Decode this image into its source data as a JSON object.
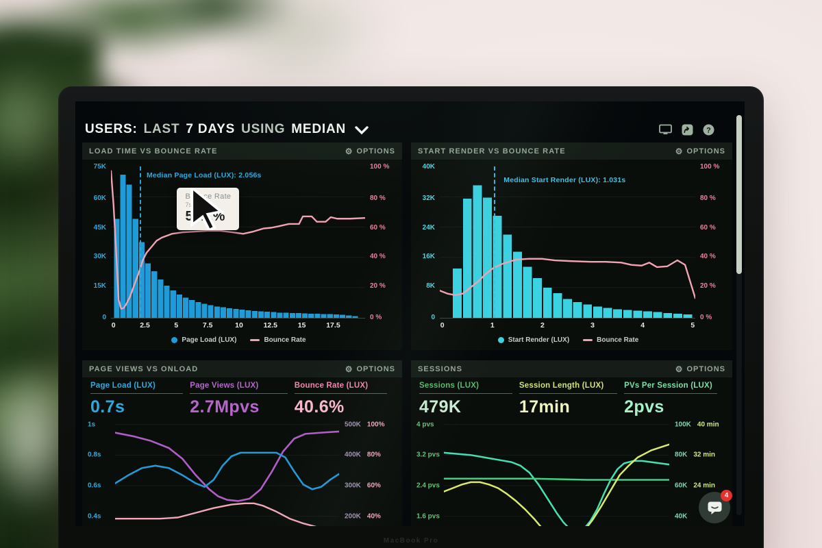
{
  "photo": {
    "bezel_label": "MacBook Pro"
  },
  "header": {
    "users": "USERS:",
    "last": "LAST",
    "days": "7 DAYS",
    "using": "USING",
    "median": "MEDIAN"
  },
  "chat": {
    "badge": "4"
  },
  "panels": {
    "load_time": {
      "title": "LOAD TIME VS BOUNCE RATE",
      "options": "OPTIONS",
      "median_annotation": "Median Page Load (LUX): 2.056s",
      "tooltip": {
        "title": "Bounce Rate",
        "subtitle": "7s",
        "value": "57.1%"
      },
      "y_left": [
        "75K",
        "60K",
        "45K",
        "30K",
        "15K",
        "0"
      ],
      "y_right": [
        "100 %",
        "80 %",
        "60 %",
        "40 %",
        "20 %",
        "0 %"
      ],
      "x_ticks": [
        {
          "label": "0",
          "pos": 1
        },
        {
          "label": "2.5",
          "pos": 13.35
        },
        {
          "label": "5",
          "pos": 25.7
        },
        {
          "label": "7.5",
          "pos": 38.05
        },
        {
          "label": "10",
          "pos": 50.4
        },
        {
          "label": "12.5",
          "pos": 62.75
        },
        {
          "label": "15",
          "pos": 75.1
        },
        {
          "label": "17.5",
          "pos": 87.45
        }
      ],
      "legend": [
        {
          "label": "Page Load (LUX)"
        },
        {
          "label": "Bounce Rate"
        }
      ],
      "chart": {
        "type": "histogram+line",
        "bar_color": "#1f9bd7",
        "bar_max_k": 75,
        "bar_start_pct": 1,
        "bar_span_pct": 96.3,
        "bars_k": [
          49,
          71,
          66,
          49,
          37.5,
          27,
          23,
          19,
          16,
          13.5,
          11.5,
          10,
          8.8,
          7.8,
          7,
          6.2,
          5.6,
          5.2,
          4.8,
          4.4,
          4,
          3.7,
          3.4,
          3.2,
          3,
          2.8,
          2.6,
          2.5,
          2.4,
          2.3,
          2.2,
          2.1,
          2,
          1.9,
          1.8,
          1.7,
          1.5,
          1.2,
          0.9
        ],
        "grid_lines": [
          20,
          40,
          60,
          80
        ],
        "median_pos": 11.2,
        "lines": [
          {
            "name": "Bounce Rate",
            "color": "#f0a3b2",
            "width": 2.4,
            "pts": [
              [
                0,
                3
              ],
              [
                1,
                25
              ],
              [
                2,
                55
              ],
              [
                3,
                88
              ],
              [
                4,
                94
              ],
              [
                5,
                93.5
              ],
              [
                6,
                91
              ],
              [
                7.5,
                86
              ],
              [
                9,
                79
              ],
              [
                11,
                70
              ],
              [
                12.5,
                62
              ],
              [
                14,
                57
              ],
              [
                16,
                53
              ],
              [
                18,
                49
              ],
              [
                20,
                47
              ],
              [
                24,
                44.5
              ],
              [
                28,
                43.5
              ],
              [
                33,
                43
              ],
              [
                38,
                42.5
              ],
              [
                43,
                42.5
              ],
              [
                48,
                43.5
              ],
              [
                52,
                44.5
              ],
              [
                56,
                43
              ],
              [
                60,
                41
              ],
              [
                63,
                40.5
              ],
              [
                66,
                39.5
              ],
              [
                70,
                38
              ],
              [
                74,
                38
              ],
              [
                75.5,
                33
              ],
              [
                79,
                33
              ],
              [
                81,
                36.5
              ],
              [
                84.5,
                36.5
              ],
              [
                86.5,
                33.5
              ],
              [
                89,
                34.5
              ],
              [
                94,
                34.5
              ],
              [
                100,
                34
              ]
            ]
          }
        ]
      }
    },
    "start_render": {
      "title": "START RENDER VS BOUNCE RATE",
      "options": "OPTIONS",
      "median_annotation": "Median Start Render (LUX): 1.031s",
      "y_left": [
        "40K",
        "32K",
        "24K",
        "16K",
        "8K",
        "0"
      ],
      "y_right": [
        "100 %",
        "80 %",
        "60 %",
        "40 %",
        "20 %",
        "0 %"
      ],
      "x_ticks": [
        {
          "label": "0",
          "pos": 1
        },
        {
          "label": "1",
          "pos": 20.6
        },
        {
          "label": "2",
          "pos": 40.2
        },
        {
          "label": "3",
          "pos": 59.8
        },
        {
          "label": "4",
          "pos": 79.4
        },
        {
          "label": "5",
          "pos": 99
        }
      ],
      "legend": [
        {
          "label": "Start Render (LUX)"
        },
        {
          "label": "Bounce Rate"
        }
      ],
      "chart": {
        "type": "histogram+line",
        "bar_color": "#3bd2e2",
        "bar_max_k": 40,
        "bar_start_pct": 4.9,
        "bar_span_pct": 94.1,
        "bars_k": [
          13,
          31.5,
          35,
          31.8,
          27,
          22,
          17.5,
          13.5,
          10.5,
          8,
          6.5,
          5,
          4.2,
          3.5,
          3,
          2.6,
          2.3,
          2.1,
          1.9,
          1.7,
          1.5,
          1.3,
          1.1,
          0.9
        ],
        "grid_lines": [
          20,
          40,
          60,
          80
        ],
        "median_pos": 21.2,
        "lines": [
          {
            "name": "Bounce Rate",
            "color": "#f0a3b2",
            "width": 2.4,
            "pts": [
              [
                0,
                82
              ],
              [
                3,
                84
              ],
              [
                6,
                85
              ],
              [
                9,
                84
              ],
              [
                12,
                80
              ],
              [
                15,
                76
              ],
              [
                18,
                71
              ],
              [
                21,
                67
              ],
              [
                25,
                64
              ],
              [
                30,
                61.5
              ],
              [
                35,
                61
              ],
              [
                40,
                61
              ],
              [
                45,
                62
              ],
              [
                51,
                62.5
              ],
              [
                59,
                63
              ],
              [
                65,
                63
              ],
              [
                71,
                63.5
              ],
              [
                75,
                65
              ],
              [
                79,
                65.5
              ],
              [
                82,
                63.5
              ],
              [
                85,
                66.5
              ],
              [
                89,
                66
              ],
              [
                93,
                62
              ],
              [
                96,
                65
              ],
              [
                100,
                87
              ]
            ]
          }
        ]
      }
    },
    "page_views": {
      "title": "PAGE VIEWS VS ONLOAD",
      "options": "OPTIONS",
      "metrics": [
        {
          "label": "Page Load (LUX)",
          "value": "0.7s",
          "label_color": "#2fa9dd",
          "value_color": "#2fa9dd"
        },
        {
          "label": "Page Views (LUX)",
          "value": "2.7Mpvs",
          "label_color": "#b765cb",
          "value_color": "#b765cb"
        },
        {
          "label": "Bounce Rate (LUX)",
          "value": "40.6%",
          "label_color": "#f286ad",
          "value_color": "#f9b7cd"
        }
      ],
      "y_left": [
        "1s",
        "0.8s",
        "0.6s",
        "0.4s"
      ],
      "y_right": [
        {
          "k": "500K",
          "pct": "100%"
        },
        {
          "k": "400K",
          "pct": "80%"
        },
        {
          "k": "300K",
          "pct": "60%"
        },
        {
          "k": "200K",
          "pct": "40%"
        }
      ],
      "chart": {
        "type": "line",
        "grid_lines": [
          5,
          31,
          57,
          83
        ],
        "lines": [
          {
            "name": "Page Views",
            "color": "#b05ec6",
            "width": 2.6,
            "pts": [
              [
                0,
                12
              ],
              [
                8,
                15
              ],
              [
                16,
                19
              ],
              [
                24,
                25
              ],
              [
                30,
                34
              ],
              [
                36,
                48
              ],
              [
                42,
                60
              ],
              [
                46,
                66
              ],
              [
                50,
                69
              ],
              [
                55,
                70
              ],
              [
                60,
                68
              ],
              [
                65,
                60
              ],
              [
                70,
                45
              ],
              [
                75,
                28
              ],
              [
                80,
                17
              ],
              [
                85,
                13
              ],
              [
                92,
                12
              ],
              [
                100,
                11
              ]
            ]
          },
          {
            "name": "Page Load",
            "color": "#2499d6",
            "width": 2.6,
            "pts": [
              [
                0,
                55
              ],
              [
                6,
                48
              ],
              [
                12,
                42
              ],
              [
                18,
                40
              ],
              [
                24,
                42
              ],
              [
                30,
                48
              ],
              [
                36,
                55
              ],
              [
                40,
                58
              ],
              [
                44,
                52
              ],
              [
                48,
                40
              ],
              [
                52,
                32
              ],
              [
                56,
                29
              ],
              [
                64,
                29
              ],
              [
                72,
                29
              ],
              [
                76,
                33
              ],
              [
                80,
                45
              ],
              [
                84,
                56
              ],
              [
                88,
                60
              ],
              [
                92,
                58
              ],
              [
                96,
                52
              ],
              [
                100,
                47
              ]
            ]
          },
          {
            "name": "Bounce Rate",
            "color": "#f2a8b8",
            "width": 2.4,
            "pts": [
              [
                0,
                85
              ],
              [
                10,
                85
              ],
              [
                20,
                85
              ],
              [
                28,
                84
              ],
              [
                36,
                80
              ],
              [
                44,
                76
              ],
              [
                52,
                73
              ],
              [
                58,
                72
              ],
              [
                62,
                72
              ],
              [
                66,
                74
              ],
              [
                72,
                79
              ],
              [
                78,
                85
              ],
              [
                84,
                89
              ],
              [
                92,
                93
              ],
              [
                100,
                95
              ]
            ]
          }
        ]
      }
    },
    "sessions": {
      "title": "SESSIONS",
      "options": "OPTIONS",
      "metrics": [
        {
          "label": "Sessions (LUX)",
          "value": "479K",
          "label_color": "#58bb6a",
          "value_color": "#c9ecd3"
        },
        {
          "label": "Session Length (LUX)",
          "value": "17min",
          "label_color": "#cfe477",
          "value_color": "#eff4c3"
        },
        {
          "label": "PVs Per Session (LUX)",
          "value": "2pvs",
          "label_color": "#79dfa9",
          "value_color": "#a5f2c9"
        }
      ],
      "y_left": [
        "4 pvs",
        "3.2 pvs",
        "2.4 pvs",
        "1.6 pvs"
      ],
      "y_right": [
        {
          "k": "100K",
          "min": "40 min"
        },
        {
          "k": "80K",
          "min": "32 min"
        },
        {
          "k": "60K",
          "min": "24 min"
        },
        {
          "k": "40K",
          "min": ""
        }
      ],
      "chart": {
        "type": "line",
        "grid_lines": [
          5,
          31,
          57,
          83
        ],
        "lines": [
          {
            "name": "Sessions",
            "color": "#45e0b2",
            "width": 2.5,
            "pts": [
              [
                0,
                29
              ],
              [
                6,
                30
              ],
              [
                12,
                31
              ],
              [
                18,
                33
              ],
              [
                24,
                35
              ],
              [
                30,
                37
              ],
              [
                34,
                40
              ],
              [
                38,
                46
              ],
              [
                42,
                56
              ],
              [
                46,
                68
              ],
              [
                50,
                80
              ],
              [
                53,
                88
              ],
              [
                56,
                94
              ],
              [
                59,
                96
              ],
              [
                62,
                94
              ],
              [
                65,
                87
              ],
              [
                68,
                77
              ],
              [
                71,
                64
              ],
              [
                74,
                52
              ],
              [
                77,
                43
              ],
              [
                80,
                38
              ],
              [
                84,
                36
              ],
              [
                88,
                36
              ],
              [
                92,
                37
              ],
              [
                96,
                38
              ],
              [
                100,
                39
              ]
            ]
          },
          {
            "name": "PVs Per Session",
            "color": "#3bd483",
            "width": 2.5,
            "pts": [
              [
                0,
                51
              ],
              [
                20,
                51
              ],
              [
                40,
                51
              ],
              [
                52,
                51.5
              ],
              [
                64,
                52
              ],
              [
                80,
                52
              ],
              [
                100,
                52
              ]
            ]
          },
          {
            "name": "Session Length",
            "color": "#d9e96b",
            "width": 2.5,
            "pts": [
              [
                0,
                62
              ],
              [
                4,
                59
              ],
              [
                8,
                56
              ],
              [
                12,
                54
              ],
              [
                16,
                54
              ],
              [
                20,
                56
              ],
              [
                24,
                59
              ],
              [
                28,
                64
              ],
              [
                32,
                70
              ],
              [
                36,
                77
              ],
              [
                40,
                85
              ],
              [
                44,
                94
              ],
              [
                47,
                103
              ],
              [
                58,
                103
              ],
              [
                62,
                96
              ],
              [
                66,
                86
              ],
              [
                70,
                74
              ],
              [
                74,
                61
              ],
              [
                78,
                48
              ],
              [
                82,
                40
              ],
              [
                86,
                33
              ],
              [
                92,
                27
              ],
              [
                100,
                22
              ]
            ]
          }
        ]
      }
    }
  }
}
